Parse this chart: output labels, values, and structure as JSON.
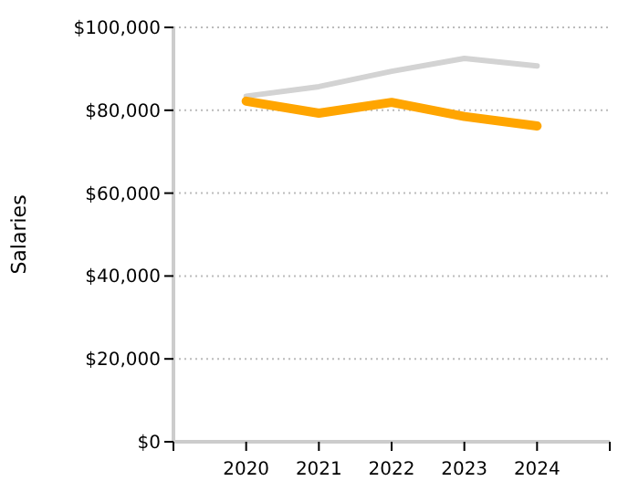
{
  "chart_data": {
    "type": "line",
    "ylabel": "Salaries",
    "x": [
      2020,
      2021,
      2022,
      2023,
      2024
    ],
    "series": [
      {
        "color": "#d3d3d3",
        "values": [
          83400,
          85700,
          89400,
          92500,
          90700
        ]
      },
      {
        "color": "#ffa500",
        "values": [
          82200,
          79300,
          81900,
          78500,
          76200
        ]
      }
    ],
    "xlim": [
      2019,
      2025
    ],
    "xticks": [
      {
        "value": 2019,
        "label": null
      },
      2020,
      2021,
      2022,
      2023,
      2024,
      {
        "value": 2025,
        "label": null
      }
    ],
    "ylim": [
      0,
      100000
    ],
    "yticks": [
      {
        "value": 0,
        "label": "$0"
      },
      {
        "value": 20000,
        "label": "$20,000"
      },
      {
        "value": 40000,
        "label": "$40,000"
      },
      {
        "value": 60000,
        "label": "$60,000"
      },
      {
        "value": 80000,
        "label": "$80,000"
      },
      {
        "value": 100000,
        "label": "$100,000"
      }
    ],
    "grid": "y",
    "marker": "none",
    "line_style": "solid"
  }
}
